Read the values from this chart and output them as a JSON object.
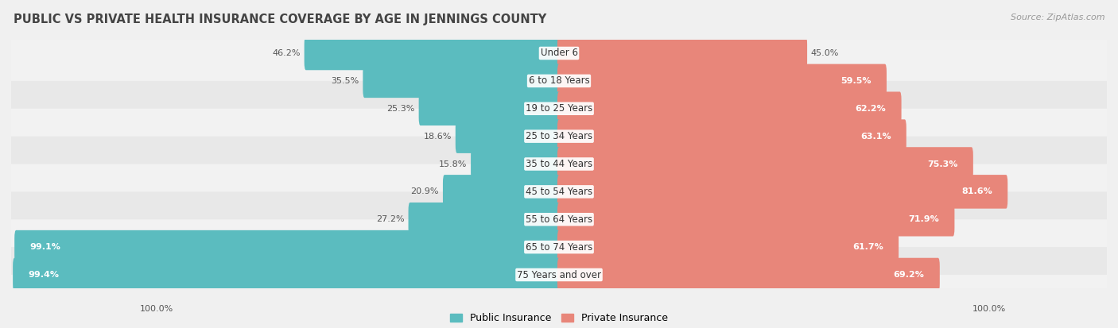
{
  "title": "PUBLIC VS PRIVATE HEALTH INSURANCE COVERAGE BY AGE IN JENNINGS COUNTY",
  "source": "Source: ZipAtlas.com",
  "categories": [
    "Under 6",
    "6 to 18 Years",
    "19 to 25 Years",
    "25 to 34 Years",
    "35 to 44 Years",
    "45 to 54 Years",
    "55 to 64 Years",
    "65 to 74 Years",
    "75 Years and over"
  ],
  "public_values": [
    46.2,
    35.5,
    25.3,
    18.6,
    15.8,
    20.9,
    27.2,
    99.1,
    99.4
  ],
  "private_values": [
    45.0,
    59.5,
    62.2,
    63.1,
    75.3,
    81.6,
    71.9,
    61.7,
    69.2
  ],
  "public_color": "#5bbcbf",
  "private_color": "#e8867a",
  "row_bg_even": "#f2f2f2",
  "row_bg_odd": "#e8e8e8",
  "max_value": 100.0,
  "title_fontsize": 10.5,
  "label_fontsize": 8.5,
  "value_fontsize": 8.0,
  "legend_fontsize": 9,
  "source_fontsize": 8,
  "bar_height": 0.62,
  "outside_label_color": "#555555",
  "inside_label_color": "#ffffff",
  "inside_threshold": 50.0
}
